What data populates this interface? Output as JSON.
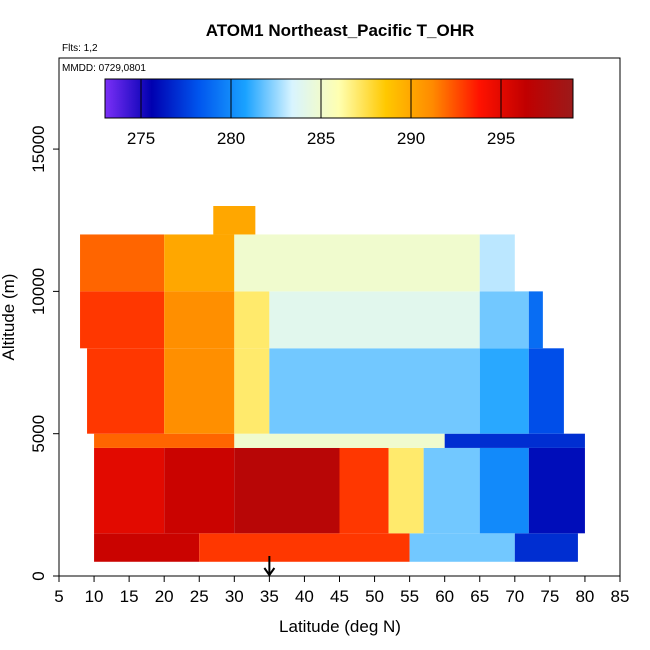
{
  "chart_data": {
    "type": "heatmap",
    "title": "ATOM1 Northeast_Pacific T_OHR",
    "notes": [
      "Flts: 1,2",
      "MMDD: 0729,0801"
    ],
    "xlabel": "Latitude (deg N)",
    "ylabel": "Altitude (m)",
    "xlim": [
      5,
      85
    ],
    "ylim": [
      0,
      18200
    ],
    "x_ticks": [
      5,
      10,
      15,
      20,
      25,
      30,
      35,
      40,
      45,
      50,
      55,
      60,
      65,
      70,
      75,
      80,
      85
    ],
    "y_ticks": [
      0,
      5000,
      10000,
      15000
    ],
    "grid": false,
    "colorbar": {
      "min": 273,
      "max": 299,
      "ticks": [
        275,
        280,
        285,
        290,
        295
      ],
      "colors": [
        "#7b2ff7",
        "#0000b0",
        "#0055ee",
        "#1aa2ff",
        "#d8f4ff",
        "#ffffb0",
        "#ffc800",
        "#ff8a00",
        "#ff1200",
        "#c00000",
        "#9c1a1a"
      ]
    },
    "marker": {
      "x": 35,
      "shape": "down-arrow"
    },
    "series": [
      {
        "alt": [
          500,
          1500
        ],
        "lat": [
          10,
          25
        ],
        "T": 296
      },
      {
        "alt": [
          500,
          1500
        ],
        "lat": [
          25,
          55
        ],
        "T": 293
      },
      {
        "alt": [
          500,
          1500
        ],
        "lat": [
          55,
          70
        ],
        "T": 282
      },
      {
        "alt": [
          500,
          1500
        ],
        "lat": [
          70,
          79
        ],
        "T": 277
      },
      {
        "alt": [
          1500,
          4500
        ],
        "lat": [
          10,
          20
        ],
        "T": 295
      },
      {
        "alt": [
          1500,
          4500
        ],
        "lat": [
          20,
          30
        ],
        "T": 296
      },
      {
        "alt": [
          1500,
          4500
        ],
        "lat": [
          30,
          45
        ],
        "T": 297
      },
      {
        "alt": [
          1500,
          4500
        ],
        "lat": [
          45,
          52
        ],
        "T": 293
      },
      {
        "alt": [
          1500,
          4500
        ],
        "lat": [
          52,
          57
        ],
        "T": 287
      },
      {
        "alt": [
          1500,
          4500
        ],
        "lat": [
          57,
          65
        ],
        "T": 282
      },
      {
        "alt": [
          1500,
          4500
        ],
        "lat": [
          65,
          72
        ],
        "T": 280
      },
      {
        "alt": [
          1500,
          4500
        ],
        "lat": [
          72,
          80
        ],
        "T": 276
      },
      {
        "alt": [
          4500,
          5000
        ],
        "lat": [
          10,
          30
        ],
        "T": 292
      },
      {
        "alt": [
          4500,
          5000
        ],
        "lat": [
          30,
          60
        ],
        "T": 285
      },
      {
        "alt": [
          4500,
          5000
        ],
        "lat": [
          60,
          80
        ],
        "T": 277
      },
      {
        "alt": [
          5000,
          8000
        ],
        "lat": [
          9,
          20
        ],
        "T": 293
      },
      {
        "alt": [
          5000,
          8000
        ],
        "lat": [
          20,
          30
        ],
        "T": 291
      },
      {
        "alt": [
          5000,
          8000
        ],
        "lat": [
          30,
          35
        ],
        "T": 287
      },
      {
        "alt": [
          5000,
          8000
        ],
        "lat": [
          35,
          65
        ],
        "T": 282
      },
      {
        "alt": [
          5000,
          8000
        ],
        "lat": [
          65,
          72
        ],
        "T": 281
      },
      {
        "alt": [
          5000,
          8000
        ],
        "lat": [
          72,
          77
        ],
        "T": 278
      },
      {
        "alt": [
          8000,
          10000
        ],
        "lat": [
          8,
          20
        ],
        "T": 293
      },
      {
        "alt": [
          8000,
          10000
        ],
        "lat": [
          20,
          30
        ],
        "T": 291
      },
      {
        "alt": [
          8000,
          10000
        ],
        "lat": [
          30,
          35
        ],
        "T": 287
      },
      {
        "alt": [
          8000,
          10000
        ],
        "lat": [
          35,
          65
        ],
        "T": 284
      },
      {
        "alt": [
          8000,
          10000
        ],
        "lat": [
          65,
          72
        ],
        "T": 282
      },
      {
        "alt": [
          8000,
          10000
        ],
        "lat": [
          72,
          74
        ],
        "T": 279
      },
      {
        "alt": [
          10000,
          12000
        ],
        "lat": [
          8,
          20
        ],
        "T": 292
      },
      {
        "alt": [
          10000,
          12000
        ],
        "lat": [
          20,
          30
        ],
        "T": 290
      },
      {
        "alt": [
          10000,
          12000
        ],
        "lat": [
          30,
          65
        ],
        "T": 285
      },
      {
        "alt": [
          10000,
          12000
        ],
        "lat": [
          65,
          70
        ],
        "T": 283
      },
      {
        "alt": [
          12000,
          13000
        ],
        "lat": [
          27,
          33
        ],
        "T": 290
      }
    ]
  }
}
